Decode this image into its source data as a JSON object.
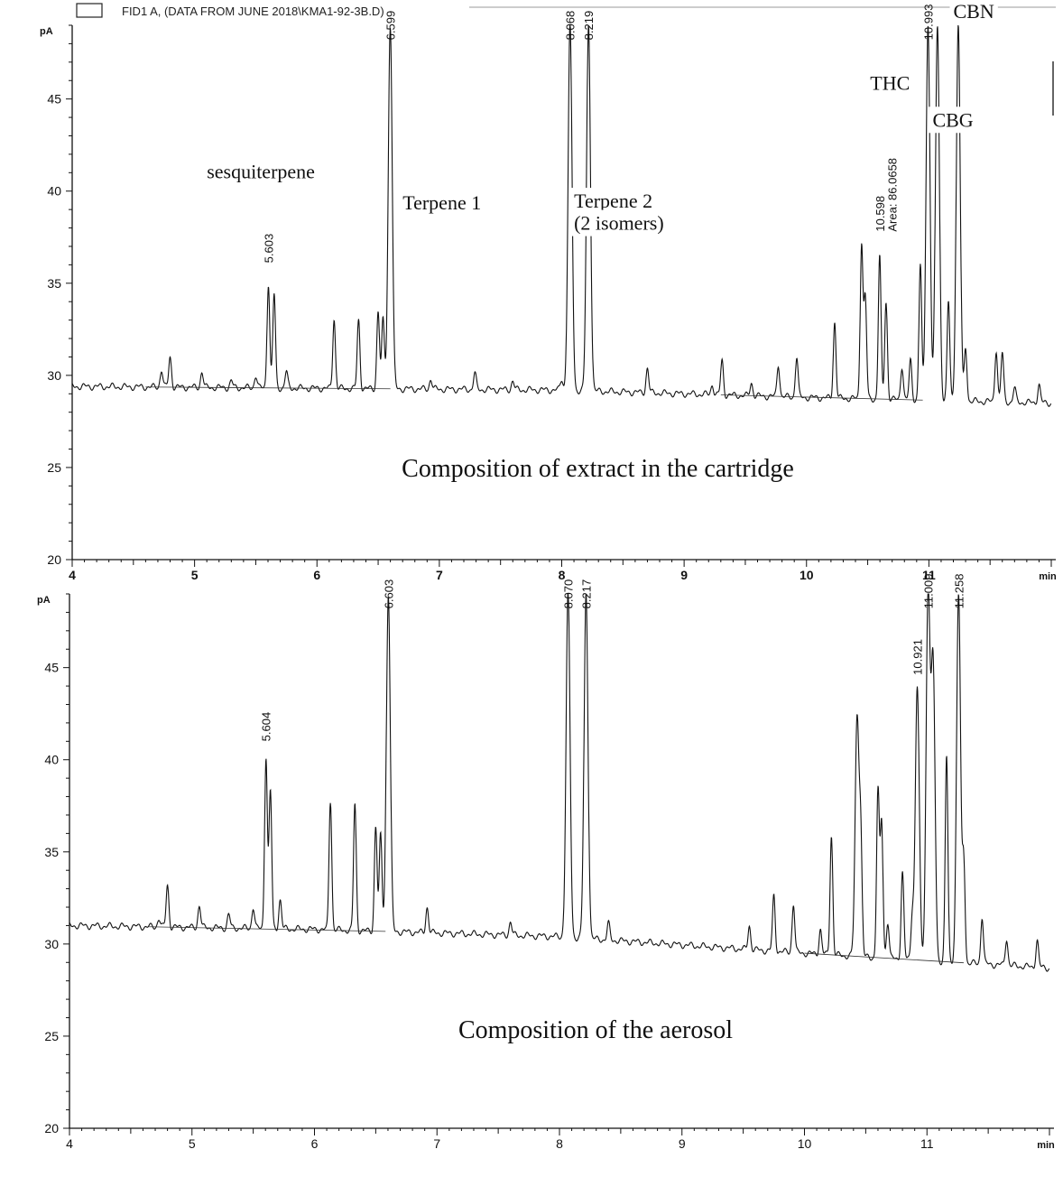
{
  "header": {
    "file_label": "FID1 A,  (DATA FROM JUNE 2018\\KMA1-92-3B.D)"
  },
  "chart_data": [
    {
      "type": "line",
      "title": "Composition of extract in the cartridge",
      "ylabel": "pA",
      "xlabel": "min",
      "xlim": [
        4,
        12
      ],
      "ylim": [
        20,
        49
      ],
      "x_ticks": [
        "4",
        "5",
        "6",
        "7",
        "8",
        "9",
        "10",
        "11"
      ],
      "y_ticks": [
        "20",
        "25",
        "30",
        "35",
        "40",
        "45"
      ],
      "baseline": [
        [
          4.0,
          29.4
        ],
        [
          6.0,
          29.3
        ],
        [
          8.0,
          29.2
        ],
        [
          10.0,
          28.8
        ],
        [
          12.0,
          28.5
        ]
      ],
      "peaks": [
        {
          "rt": 4.73,
          "height": 30.3
        },
        {
          "rt": 4.8,
          "height": 31.0
        },
        {
          "rt": 5.06,
          "height": 30.2
        },
        {
          "rt": 5.3,
          "height": 29.7
        },
        {
          "rt": 5.5,
          "height": 30.0
        },
        {
          "rt": 5.603,
          "height": 35.0
        },
        {
          "rt": 5.65,
          "height": 34.4
        },
        {
          "rt": 5.75,
          "height": 30.2
        },
        {
          "rt": 6.14,
          "height": 33.1
        },
        {
          "rt": 6.34,
          "height": 33.0
        },
        {
          "rt": 6.5,
          "height": 33.5
        },
        {
          "rt": 6.54,
          "height": 33.0
        },
        {
          "rt": 6.599,
          "height": 49.0
        },
        {
          "rt": 6.93,
          "height": 29.8
        },
        {
          "rt": 7.29,
          "height": 30.1
        },
        {
          "rt": 7.6,
          "height": 29.7
        },
        {
          "rt": 8.0,
          "height": 29.8
        },
        {
          "rt": 8.068,
          "height": 49.0
        },
        {
          "rt": 8.219,
          "height": 49.0
        },
        {
          "rt": 8.7,
          "height": 30.4
        },
        {
          "rt": 9.23,
          "height": 29.5
        },
        {
          "rt": 9.31,
          "height": 30.8
        },
        {
          "rt": 9.55,
          "height": 29.6
        },
        {
          "rt": 9.77,
          "height": 30.6
        },
        {
          "rt": 9.92,
          "height": 31.0
        },
        {
          "rt": 10.23,
          "height": 32.9
        },
        {
          "rt": 10.45,
          "height": 37.2
        },
        {
          "rt": 10.48,
          "height": 34.2
        },
        {
          "rt": 10.598,
          "height": 36.5
        },
        {
          "rt": 10.65,
          "height": 34.0
        },
        {
          "rt": 10.78,
          "height": 30.5
        },
        {
          "rt": 10.85,
          "height": 30.8
        },
        {
          "rt": 10.93,
          "height": 36.0
        },
        {
          "rt": 10.993,
          "height": 49.0
        },
        {
          "rt": 11.07,
          "height": 49.0
        },
        {
          "rt": 11.16,
          "height": 34.0
        },
        {
          "rt": 11.24,
          "height": 49.0
        },
        {
          "rt": 11.3,
          "height": 31.5
        },
        {
          "rt": 11.55,
          "height": 31.4
        },
        {
          "rt": 11.6,
          "height": 31.2
        },
        {
          "rt": 11.7,
          "height": 29.3
        },
        {
          "rt": 11.9,
          "height": 29.5
        }
      ],
      "rt_labels": [
        {
          "text": "5.603",
          "rt": 5.603,
          "y": 36.1
        },
        {
          "text": "6.599",
          "rt": 6.599,
          "y": 48.2
        },
        {
          "text": "8.068",
          "rt": 8.068,
          "y": 48.2
        },
        {
          "text": "8.219",
          "rt": 8.219,
          "y": 48.2
        },
        {
          "text": "10.598",
          "rt": 10.598,
          "y": 37.8
        },
        {
          "text": "Area: 86.0658",
          "rt": 10.7,
          "y": 37.8
        },
        {
          "text": "10.993",
          "rt": 10.993,
          "y": 48.2
        }
      ],
      "annotations": [
        {
          "text": "sesquiterpene",
          "rt": 5.1,
          "y": 40.7
        },
        {
          "text": "Terpene 1",
          "rt": 6.7,
          "y": 39.0
        },
        {
          "text": "Terpene 2",
          "rt": 8.1,
          "y": 39.1
        },
        {
          "text": "(2 isomers)",
          "rt": 8.1,
          "y": 37.9
        },
        {
          "text": "THC",
          "rt": 10.52,
          "y": 45.5
        },
        {
          "text": "CBG",
          "rt": 11.03,
          "y": 43.5
        },
        {
          "text": "CBN",
          "rt": 11.2,
          "y": 49.4
        }
      ],
      "caption": "Composition of extract in the cartridge"
    },
    {
      "type": "line",
      "title": "Composition of the aerosol",
      "ylabel": "pA",
      "xlabel": "min",
      "xlim": [
        4,
        12
      ],
      "ylim": [
        20,
        49
      ],
      "x_ticks": [
        "4",
        "5",
        "6",
        "7",
        "8",
        "9",
        "10",
        "11"
      ],
      "y_ticks": [
        "20",
        "25",
        "30",
        "35",
        "40",
        "45"
      ],
      "baseline": [
        [
          4.0,
          31.0
        ],
        [
          6.0,
          30.8
        ],
        [
          8.0,
          30.4
        ],
        [
          10.0,
          29.5
        ],
        [
          12.0,
          28.7
        ]
      ],
      "peaks": [
        {
          "rt": 4.73,
          "height": 31.4
        },
        {
          "rt": 4.8,
          "height": 33.2
        },
        {
          "rt": 5.06,
          "height": 32.1
        },
        {
          "rt": 5.3,
          "height": 31.6
        },
        {
          "rt": 5.5,
          "height": 32.0
        },
        {
          "rt": 5.604,
          "height": 40.2
        },
        {
          "rt": 5.64,
          "height": 38.3
        },
        {
          "rt": 5.72,
          "height": 32.4
        },
        {
          "rt": 6.13,
          "height": 37.8
        },
        {
          "rt": 6.33,
          "height": 37.6
        },
        {
          "rt": 6.5,
          "height": 36.4
        },
        {
          "rt": 6.54,
          "height": 35.9
        },
        {
          "rt": 6.603,
          "height": 49.0
        },
        {
          "rt": 6.92,
          "height": 32.0
        },
        {
          "rt": 7.6,
          "height": 31.2
        },
        {
          "rt": 8.07,
          "height": 49.0
        },
        {
          "rt": 8.217,
          "height": 49.0
        },
        {
          "rt": 8.4,
          "height": 31.1
        },
        {
          "rt": 9.55,
          "height": 31.0
        },
        {
          "rt": 9.75,
          "height": 32.6
        },
        {
          "rt": 9.91,
          "height": 32.2
        },
        {
          "rt": 10.13,
          "height": 30.8
        },
        {
          "rt": 10.22,
          "height": 35.9
        },
        {
          "rt": 10.43,
          "height": 42.4
        },
        {
          "rt": 10.46,
          "height": 35.0
        },
        {
          "rt": 10.6,
          "height": 38.3
        },
        {
          "rt": 10.63,
          "height": 36.6
        },
        {
          "rt": 10.68,
          "height": 31.2
        },
        {
          "rt": 10.8,
          "height": 33.9
        },
        {
          "rt": 10.88,
          "height": 31.5
        },
        {
          "rt": 10.921,
          "height": 44.0
        },
        {
          "rt": 11.009,
          "height": 49.0
        },
        {
          "rt": 11.05,
          "height": 45.0
        },
        {
          "rt": 11.16,
          "height": 40.2
        },
        {
          "rt": 11.258,
          "height": 49.0
        },
        {
          "rt": 11.3,
          "height": 34.5
        },
        {
          "rt": 11.45,
          "height": 31.5
        },
        {
          "rt": 11.65,
          "height": 30.3
        },
        {
          "rt": 11.9,
          "height": 30.2
        }
      ],
      "rt_labels": [
        {
          "text": "5.604",
          "rt": 5.604,
          "y": 41.0
        },
        {
          "text": "6.603",
          "rt": 6.603,
          "y": 48.2
        },
        {
          "text": "8.070",
          "rt": 8.07,
          "y": 48.2
        },
        {
          "text": "8.217",
          "rt": 8.217,
          "y": 48.2
        },
        {
          "text": "10.921",
          "rt": 10.921,
          "y": 44.6
        },
        {
          "text": "11.009",
          "rt": 11.009,
          "y": 48.2
        },
        {
          "text": "11.258",
          "rt": 11.258,
          "y": 48.2
        }
      ],
      "annotations": [],
      "caption": "Composition of the aerosol"
    }
  ]
}
